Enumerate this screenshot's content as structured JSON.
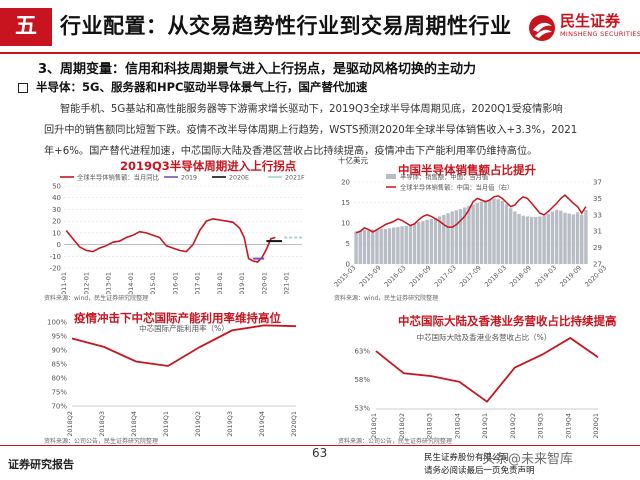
{
  "header": {
    "section_num": "五",
    "title": "行业配置：从交易趋势性行业到交易周期性行业",
    "logo_cn": "民生证券",
    "logo_en": "MINSHENG SECURITIES",
    "brand_color": "#c8141e"
  },
  "subtitle": "3、周期变量：信用和科技周期景气进入上行拐点，是驱动风格切换的主动力",
  "bullet": "半导体：5G、服务器和HPC驱动半导体景气上行，国产替代加速",
  "paragraph": [
    "智能手机、5G基站和高性能服务器等下游需求增长驱动下，2019Q3全球半导体周期见底，2020Q1受疫情影响",
    "回升中的销售额同比短暂下跌。疫情不改半导体周期上行趋势，WSTS预测2020年全球半导体销售收入+3.3%，2021",
    "年+6%。国产替代进程加速，中芯国际大陆及香港区营收占比持续提高，疫情冲击下产能利用率仍维持高位。"
  ],
  "footer": {
    "left": "证券研究报告",
    "page": "63",
    "right1": "民生证券股份有限公司",
    "right2": "请务必阅读最后一页免责声明",
    "watermark": "头条@未来智库"
  },
  "chart_data": [
    {
      "type": "line",
      "title": "2019Q3半导体周期进入上行拐点",
      "legend": [
        "全球半导体销售额：当月同比",
        "2019",
        "2020E",
        "2021F"
      ],
      "x_ticks": [
        "2011-01",
        "2012-01",
        "2013-01",
        "2014-01",
        "2015-01",
        "2016-01",
        "2017-01",
        "2018-01",
        "2019-01",
        "2020-01",
        "2021-01"
      ],
      "ylim": [
        -20,
        50
      ],
      "y_ticks": [
        -20,
        -10,
        0,
        10,
        20,
        30,
        40,
        50
      ],
      "series": [
        {
          "name": "全球半导体销售额：当月同比",
          "color": "#c8141e",
          "x": [
            2011.0,
            2011.3,
            2011.6,
            2011.9,
            2012.2,
            2012.5,
            2012.8,
            2013.1,
            2013.4,
            2013.7,
            2014.0,
            2014.3,
            2014.6,
            2014.9,
            2015.2,
            2015.5,
            2015.8,
            2016.1,
            2016.4,
            2016.7,
            2017.0,
            2017.3,
            2017.6,
            2017.9,
            2018.2,
            2018.5,
            2018.8,
            2019.0,
            2019.2,
            2019.4,
            2019.6,
            2019.8,
            2020.0,
            2020.2,
            2020.4
          ],
          "values": [
            12,
            5,
            -2,
            -5,
            -6,
            -3,
            -1,
            2,
            3,
            6,
            8,
            11,
            10,
            8,
            6,
            -1,
            -3,
            -5,
            -6,
            0,
            12,
            20,
            22,
            21,
            20,
            19,
            14,
            6,
            -12,
            -14,
            -15,
            -11,
            -4,
            5,
            6
          ]
        },
        {
          "name": "2019",
          "color": "#7b4fb5",
          "x": [
            2019.4,
            2019.9
          ],
          "values": [
            -12,
            -12
          ]
        },
        {
          "name": "2020E",
          "color": "#111111",
          "x": [
            2020.0,
            2020.7
          ],
          "values": [
            3,
            3
          ]
        },
        {
          "name": "2021F",
          "color": "#9fd8c8",
          "x": [
            2020.8,
            2021.6
          ],
          "values": [
            6,
            6
          ]
        }
      ],
      "source": "资料来源：wind，民生证券研究院整理"
    },
    {
      "type": "bar",
      "title": "中国半导体销售额占比提升",
      "unit_label": "十亿美元",
      "legend": [
        "半导体：销售额：中国：当月值",
        "全球半导体销售额：中国：当月值（右）"
      ],
      "x_ticks": [
        "2015-03",
        "2015-09",
        "2016-03",
        "2016-09",
        "2017-03",
        "2017-09",
        "2018-03",
        "2018-09",
        "2019-03",
        "2019-09",
        "2020-03"
      ],
      "ylim": [
        0,
        20
      ],
      "y_ticks": [
        0,
        5,
        10,
        15,
        20
      ],
      "y2lim": [
        27,
        37
      ],
      "y2_ticks": [
        27,
        29,
        31,
        33,
        35,
        37
      ],
      "series": [
        {
          "name": "半导体：销售额：中国：当月值",
          "color": "#b8bcc4",
          "values": [
            8.0,
            8.1,
            8.3,
            8.2,
            8.4,
            8.5,
            8.6,
            8.6,
            8.7,
            8.9,
            9.0,
            9.2,
            9.3,
            9.6,
            9.9,
            10.2,
            10.5,
            10.8,
            11.0,
            11.3,
            11.6,
            12.0,
            12.4,
            12.8,
            13.1,
            13.4,
            13.8,
            14.2,
            14.5,
            14.9,
            15.2,
            15.5,
            15.7,
            16.0,
            15.8,
            15.4,
            14.6,
            13.6,
            12.8,
            12.2,
            11.8,
            11.6,
            11.5,
            11.5,
            11.6,
            11.8,
            12.2,
            12.8,
            13.2,
            13.0,
            12.5,
            12.3,
            12.1,
            12.6,
            12.0,
            13.2
          ]
        },
        {
          "name": "全球半导体销售额：中国：当月值（右）",
          "color": "#c8141e",
          "values": [
            30.8,
            31.0,
            31.4,
            31.2,
            30.9,
            31.2,
            31.5,
            31.8,
            32.0,
            32.2,
            32.5,
            32.3,
            32.0,
            31.7,
            31.9,
            32.4,
            32.8,
            33.0,
            32.8,
            32.5,
            32.2,
            31.8,
            31.5,
            31.5,
            31.8,
            32.3,
            32.8,
            33.6,
            34.6,
            35.0,
            34.8,
            34.6,
            34.8,
            35.2,
            35.3,
            35.0,
            34.5,
            34.0,
            34.2,
            34.8,
            35.2,
            35.0,
            34.4,
            33.8,
            33.2,
            33.0,
            33.4,
            33.9,
            34.4,
            35.0,
            35.4,
            34.9,
            34.4,
            34.0,
            33.2,
            34.0
          ]
        }
      ],
      "source": "资料来源：wind，民生证券研究院整理"
    },
    {
      "type": "line",
      "title": "疫情冲击下中芯国际产能利用率维持高位",
      "series_label": "中芯国际产能利用率（%）",
      "categories": [
        "2018Q2",
        "2018Q3",
        "2018Q4",
        "2019Q1",
        "2019Q2",
        "2019Q3",
        "2019Q4",
        "2020Q1"
      ],
      "ylim": [
        70,
        100
      ],
      "y_ticks": [
        "70%",
        "75%",
        "80%",
        "85%",
        "90%",
        "95%",
        "100%"
      ],
      "series": [
        {
          "name": "中芯国际产能利用率（%）",
          "color": "#c8141e",
          "values": [
            94.1,
            91.1,
            85.9,
            84.3,
            91.1,
            97.0,
            98.8,
            98.5
          ]
        }
      ],
      "source": "资料来源：公司公告，民生证券研究院整理"
    },
    {
      "type": "line",
      "title": "中芯国际大陆及香港业务营收占比持续提高",
      "series_label": "中芯国际大陆及香港业务营收占比（%）",
      "categories": [
        "2018Q1",
        "2018Q2",
        "2018Q3",
        "2018Q4",
        "2019Q1",
        "2019Q2",
        "2019Q3",
        "2019Q4",
        "2020Q1"
      ],
      "ylim": [
        53,
        66
      ],
      "y_ticks": [
        "53%",
        "58%",
        "63%"
      ],
      "series": [
        {
          "name": "中芯国际大陆及香港业务营收占比（%）",
          "color": "#c8141e",
          "values": [
            63.0,
            59.1,
            58.6,
            57.6,
            54.1,
            60.1,
            62.4,
            65.3,
            61.9
          ]
        }
      ],
      "source": "资料来源：公司公告，民生证券研究院整理"
    }
  ]
}
